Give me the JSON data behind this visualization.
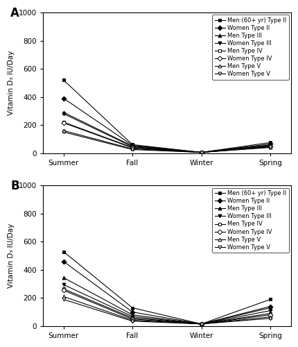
{
  "panel_A": {
    "title": "A",
    "seasons": [
      "Summer",
      "Fall",
      "Winter",
      "Spring"
    ],
    "series": [
      {
        "label": "Men (60+ yr) Type II",
        "values": [
          520,
          60,
          5,
          75
        ],
        "marker": "s",
        "color": "black",
        "mfc": "black",
        "ms": 3.5
      },
      {
        "label": "Women Type II",
        "values": [
          390,
          55,
          5,
          65
        ],
        "marker": "D",
        "color": "black",
        "mfc": "black",
        "ms": 3.5
      },
      {
        "label": "Men Type III",
        "values": [
          290,
          50,
          5,
          58
        ],
        "marker": "^",
        "color": "black",
        "mfc": "black",
        "ms": 3.5
      },
      {
        "label": "Women Type III",
        "values": [
          280,
          45,
          5,
          54
        ],
        "marker": "v",
        "color": "black",
        "mfc": "black",
        "ms": 3.5
      },
      {
        "label": "Men Type IV",
        "values": [
          220,
          40,
          5,
          50
        ],
        "marker": "s",
        "color": "black",
        "mfc": "white",
        "ms": 3.5
      },
      {
        "label": "Women Type IV",
        "values": [
          215,
          37,
          5,
          46
        ],
        "marker": "D",
        "color": "black",
        "mfc": "white",
        "ms": 3.5
      },
      {
        "label": "Men Type V",
        "values": [
          160,
          30,
          5,
          43
        ],
        "marker": "^",
        "color": "black",
        "mfc": "white",
        "ms": 3.5
      },
      {
        "label": "Women Type V",
        "values": [
          150,
          25,
          5,
          40
        ],
        "marker": "v",
        "color": "black",
        "mfc": "white",
        "ms": 3.5
      }
    ],
    "ylim": [
      0,
      1000
    ],
    "yticks": [
      0,
      200,
      400,
      600,
      800,
      1000
    ],
    "ylabel": "Vitamin D₃ IU/Day"
  },
  "panel_B": {
    "title": "B",
    "seasons": [
      "Summer",
      "Fall",
      "Winter",
      "Spring"
    ],
    "series": [
      {
        "label": "Men (60+ yr) Type II",
        "values": [
          530,
          130,
          15,
          190
        ],
        "marker": "s",
        "color": "black",
        "mfc": "black",
        "ms": 3.5
      },
      {
        "label": "Women Type II",
        "values": [
          460,
          100,
          15,
          140
        ],
        "marker": "D",
        "color": "black",
        "mfc": "black",
        "ms": 3.5
      },
      {
        "label": "Men Type III",
        "values": [
          345,
          80,
          15,
          130
        ],
        "marker": "^",
        "color": "black",
        "mfc": "black",
        "ms": 3.5
      },
      {
        "label": "Women Type III",
        "values": [
          295,
          68,
          15,
          110
        ],
        "marker": "v",
        "color": "black",
        "mfc": "black",
        "ms": 3.5
      },
      {
        "label": "Men Type IV",
        "values": [
          265,
          58,
          15,
          90
        ],
        "marker": "s",
        "color": "black",
        "mfc": "white",
        "ms": 3.5
      },
      {
        "label": "Women Type IV",
        "values": [
          255,
          50,
          15,
          80
        ],
        "marker": "D",
        "color": "black",
        "mfc": "white",
        "ms": 3.5
      },
      {
        "label": "Men Type V",
        "values": [
          210,
          42,
          15,
          65
        ],
        "marker": "^",
        "color": "black",
        "mfc": "white",
        "ms": 3.5
      },
      {
        "label": "Women Type V",
        "values": [
          190,
          35,
          15,
          55
        ],
        "marker": "v",
        "color": "black",
        "mfc": "white",
        "ms": 3.5
      }
    ],
    "ylim": [
      0,
      1000
    ],
    "yticks": [
      0,
      200,
      400,
      600,
      800,
      1000
    ],
    "ylabel": "Vitamin D₃ IU/Day"
  },
  "figsize": [
    4.31,
    5.0
  ],
  "dpi": 100,
  "background_color": "#ffffff"
}
